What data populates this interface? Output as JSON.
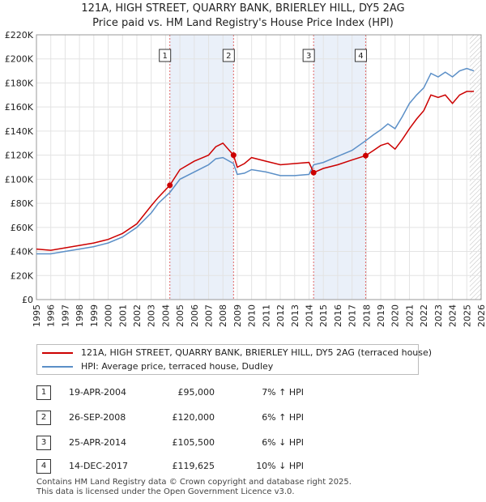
{
  "chart_data": {
    "type": "line",
    "title": "121A, HIGH STREET, QUARRY BANK, BRIERLEY HILL, DY5 2AG",
    "subtitle": "Price paid vs. HM Land Registry's House Price Index (HPI)",
    "xlim": [
      1995,
      2026
    ],
    "ylim": [
      0,
      220000
    ],
    "xticks": [
      1995,
      1996,
      1997,
      1998,
      1999,
      2000,
      2001,
      2002,
      2003,
      2004,
      2005,
      2006,
      2007,
      2008,
      2009,
      2010,
      2011,
      2012,
      2013,
      2014,
      2015,
      2016,
      2017,
      2018,
      2019,
      2020,
      2021,
      2022,
      2023,
      2024,
      2025,
      2026
    ],
    "yticks": [
      {
        "value": 0,
        "label": "£0"
      },
      {
        "value": 20000,
        "label": "£20K"
      },
      {
        "value": 40000,
        "label": "£40K"
      },
      {
        "value": 60000,
        "label": "£60K"
      },
      {
        "value": 80000,
        "label": "£80K"
      },
      {
        "value": 100000,
        "label": "£100K"
      },
      {
        "value": 120000,
        "label": "£120K"
      },
      {
        "value": 140000,
        "label": "£140K"
      },
      {
        "value": 160000,
        "label": "£160K"
      },
      {
        "value": 180000,
        "label": "£180K"
      },
      {
        "value": 200000,
        "label": "£200K"
      },
      {
        "value": 220000,
        "label": "£220K"
      }
    ],
    "grid": true,
    "series": [
      {
        "name": "121A, HIGH STREET, QUARRY BANK, BRIERLEY HILL, DY5 2AG (terraced house)",
        "color": "#cc0000",
        "x": [
          1995,
          1996,
          1997,
          1998,
          1999,
          2000,
          2001,
          2002,
          2003,
          2003.5,
          2004.3,
          2005,
          2006,
          2007,
          2007.5,
          2008,
          2008.74,
          2009,
          2009.5,
          2010,
          2011,
          2012,
          2013,
          2014.0,
          2014.32,
          2015,
          2016,
          2017,
          2017.95,
          2018.5,
          2019,
          2019.5,
          2020,
          2020.5,
          2021,
          2021.5,
          2022,
          2022.5,
          2023,
          2023.5,
          2024,
          2024.5,
          2025,
          2025.5
        ],
        "y": [
          42000,
          41000,
          43000,
          45000,
          47000,
          50000,
          55000,
          63000,
          78000,
          85000,
          95000,
          108000,
          115000,
          120000,
          127000,
          130000,
          120000,
          110000,
          113000,
          118000,
          115000,
          112000,
          113000,
          114000,
          105500,
          109000,
          112000,
          116000,
          119625,
          124000,
          128000,
          130000,
          125000,
          133000,
          142000,
          150000,
          157000,
          170000,
          168000,
          170000,
          163000,
          170000,
          173000,
          173000
        ]
      },
      {
        "name": "HPI: Average price, terraced house, Dudley",
        "color": "#5b8fc7",
        "x": [
          1995,
          1996,
          1997,
          1998,
          1999,
          2000,
          2001,
          2002,
          2003,
          2003.5,
          2004.3,
          2005,
          2006,
          2007,
          2007.5,
          2008,
          2008.74,
          2009,
          2009.5,
          2010,
          2011,
          2012,
          2013,
          2014.0,
          2014.32,
          2015,
          2016,
          2017,
          2017.95,
          2018.5,
          2019,
          2019.5,
          2020,
          2020.5,
          2021,
          2021.5,
          2022,
          2022.5,
          2023,
          2023.5,
          2024,
          2024.5,
          2025,
          2025.5
        ],
        "y": [
          38000,
          38000,
          40000,
          42000,
          44000,
          47000,
          52000,
          60000,
          72000,
          80000,
          89000,
          100000,
          106000,
          112000,
          117000,
          118000,
          113000,
          104000,
          105000,
          108000,
          106000,
          103000,
          103000,
          104000,
          112000,
          114000,
          119000,
          124000,
          132000,
          137000,
          141000,
          146000,
          142000,
          152000,
          163000,
          170000,
          176000,
          188000,
          185000,
          189000,
          185000,
          190000,
          192000,
          190000
        ]
      }
    ],
    "sale_markers": [
      {
        "label": "1",
        "x": 2004.3,
        "y": 95000
      },
      {
        "label": "2",
        "x": 2008.74,
        "y": 120000
      },
      {
        "label": "3",
        "x": 2014.32,
        "y": 105500
      },
      {
        "label": "4",
        "x": 2017.95,
        "y": 119625
      }
    ],
    "shaded_periods": [
      [
        2004.3,
        2008.74
      ],
      [
        2014.32,
        2017.95
      ]
    ],
    "forecast_start": 2025.2
  },
  "legend": {
    "property": "121A, HIGH STREET, QUARRY BANK, BRIERLEY HILL, DY5 2AG (terraced house)",
    "hpi": "HPI: Average price, terraced house, Dudley",
    "property_color": "#cc0000",
    "hpi_color": "#5b8fc7"
  },
  "transactions": [
    {
      "num": "1",
      "date": "19-APR-2004",
      "price": "£95,000",
      "hpi": "7% ↑ HPI"
    },
    {
      "num": "2",
      "date": "26-SEP-2008",
      "price": "£120,000",
      "hpi": "6% ↑ HPI"
    },
    {
      "num": "3",
      "date": "25-APR-2014",
      "price": "£105,500",
      "hpi": "6% ↓ HPI"
    },
    {
      "num": "4",
      "date": "14-DEC-2017",
      "price": "£119,625",
      "hpi": "10% ↓ HPI"
    }
  ],
  "footer": {
    "line1": "Contains HM Land Registry data © Crown copyright and database right 2025.",
    "line2": "This data is licensed under the Open Government Licence v3.0."
  }
}
